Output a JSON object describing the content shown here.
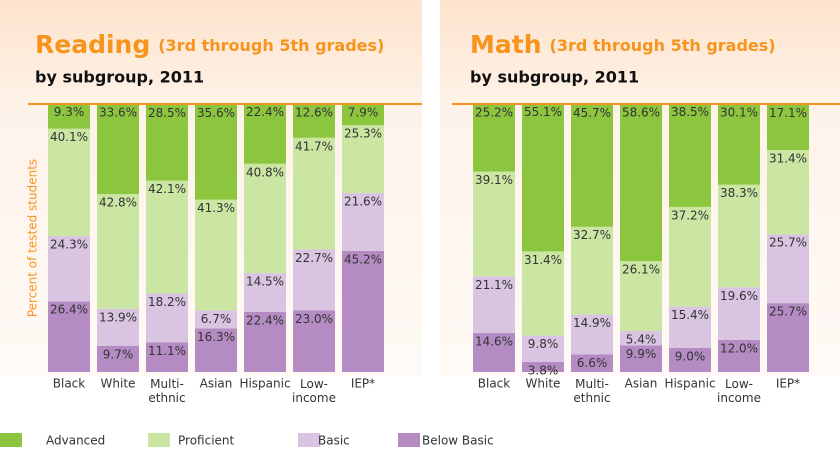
{
  "chart_data": [
    {
      "type": "bar",
      "stacked": true,
      "title": "Reading",
      "title_note": "(3rd through 5th grades)",
      "subtitle": "by subgroup, 2011",
      "ylabel": "Percent of tested students",
      "categories": [
        "Black",
        "White",
        "Multi-ethnic",
        "Asian",
        "Hispanic",
        "Low-income",
        "IEP*"
      ],
      "ylim": [
        0,
        100
      ],
      "series": [
        {
          "name": "Below Basic",
          "color": "#b48cc3",
          "values": [
            26.4,
            9.7,
            11.1,
            16.3,
            22.4,
            23.0,
            45.2
          ],
          "value_labels": [
            "26.4%",
            "9.7%",
            "11.1%",
            "16.3%",
            "22.4%",
            "23.0%",
            "45.2%"
          ]
        },
        {
          "name": "Basic",
          "color": "#d9c4e1",
          "values": [
            24.3,
            13.9,
            18.2,
            6.7,
            14.5,
            22.7,
            21.6
          ],
          "value_labels": [
            "24.3%",
            "13.9%",
            "18.2%",
            "6.7%",
            "14.5%",
            "22.7%",
            "21.6%"
          ]
        },
        {
          "name": "Proficient",
          "color": "#cbe6a3",
          "values": [
            40.1,
            42.8,
            42.1,
            41.3,
            40.8,
            41.7,
            25.3
          ],
          "value_labels": [
            "40.1%",
            "42.8%",
            "42.1%",
            "41.3%",
            "40.8%",
            "41.7%",
            "25.3%"
          ]
        },
        {
          "name": "Advanced",
          "color": "#8cc63f",
          "values": [
            9.3,
            33.6,
            28.5,
            35.6,
            22.4,
            12.6,
            7.9
          ],
          "value_labels": [
            "9.3%",
            "33.6%",
            "28.5%",
            "35.6%",
            "22.4%",
            "12.6%",
            "7.9%"
          ]
        }
      ]
    },
    {
      "type": "bar",
      "stacked": true,
      "title": "Math",
      "title_note": "(3rd through 5th grades)",
      "subtitle": "by subgroup, 2011",
      "categories": [
        "Black",
        "White",
        "Multi-ethnic",
        "Asian",
        "Hispanic",
        "Low-income",
        "IEP*"
      ],
      "ylim": [
        0,
        100
      ],
      "series": [
        {
          "color": "#b48cc3",
          "values": [
            14.6,
            3.8,
            6.6,
            9.9,
            9.0,
            12.0,
            25.7
          ],
          "value_labels": [
            "14.6%",
            "3.8%",
            "6.6%",
            "9.9%",
            "9.0%",
            "12.0%",
            "25.7%"
          ]
        },
        {
          "color": "#d9c4e1",
          "values": [
            21.1,
            9.8,
            14.9,
            5.4,
            15.4,
            19.6,
            25.7
          ],
          "value_labels": [
            "21.1%",
            "9.8%",
            "14.9%",
            "5.4%",
            "15.4%",
            "19.6%",
            "25.7%"
          ]
        },
        {
          "color": "#cbe6a3",
          "values": [
            39.1,
            31.4,
            32.7,
            26.1,
            37.2,
            38.3,
            31.4
          ],
          "value_labels": [
            "39.1%",
            "31.4%",
            "32.7%",
            "26.1%",
            "37.2%",
            "38.3%",
            "31.4%"
          ]
        },
        {
          "color": "#8cc63f",
          "values": [
            25.2,
            55.1,
            45.7,
            58.6,
            38.5,
            30.1,
            17.1
          ],
          "value_labels": [
            "25.2%",
            "55.1%",
            "45.7%",
            "58.6%",
            "38.5%",
            "30.1%",
            "17.1%"
          ]
        }
      ]
    }
  ]
}
